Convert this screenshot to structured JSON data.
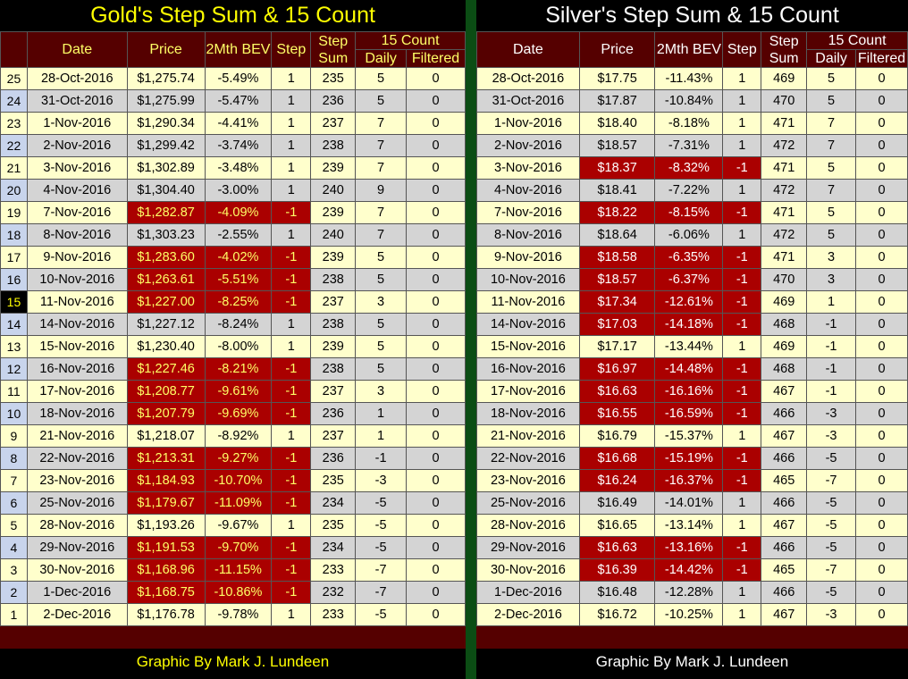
{
  "gold": {
    "title": "Gold's Step Sum & 15 Count",
    "headers": {
      "date": "Date",
      "price": "Price",
      "bev": "2Mth BEV",
      "step": "Step",
      "stepsum": "Step Sum",
      "count15": "15 Count",
      "daily": "Daily",
      "filtered": "Filtered"
    },
    "rows": [
      {
        "rank": "25",
        "date": "28-Oct-2016",
        "price": "$1,275.74",
        "bev": "-5.49%",
        "step": "1",
        "stepsum": "235",
        "daily": "5",
        "filtered": "0",
        "red": false
      },
      {
        "rank": "24",
        "date": "31-Oct-2016",
        "price": "$1,275.99",
        "bev": "-5.47%",
        "step": "1",
        "stepsum": "236",
        "daily": "5",
        "filtered": "0",
        "red": false
      },
      {
        "rank": "23",
        "date": "1-Nov-2016",
        "price": "$1,290.34",
        "bev": "-4.41%",
        "step": "1",
        "stepsum": "237",
        "daily": "7",
        "filtered": "0",
        "red": false
      },
      {
        "rank": "22",
        "date": "2-Nov-2016",
        "price": "$1,299.42",
        "bev": "-3.74%",
        "step": "1",
        "stepsum": "238",
        "daily": "7",
        "filtered": "0",
        "red": false
      },
      {
        "rank": "21",
        "date": "3-Nov-2016",
        "price": "$1,302.89",
        "bev": "-3.48%",
        "step": "1",
        "stepsum": "239",
        "daily": "7",
        "filtered": "0",
        "red": false
      },
      {
        "rank": "20",
        "date": "4-Nov-2016",
        "price": "$1,304.40",
        "bev": "-3.00%",
        "step": "1",
        "stepsum": "240",
        "daily": "9",
        "filtered": "0",
        "red": false
      },
      {
        "rank": "19",
        "date": "7-Nov-2016",
        "price": "$1,282.87",
        "bev": "-4.09%",
        "step": "-1",
        "stepsum": "239",
        "daily": "7",
        "filtered": "0",
        "red": true
      },
      {
        "rank": "18",
        "date": "8-Nov-2016",
        "price": "$1,303.23",
        "bev": "-2.55%",
        "step": "1",
        "stepsum": "240",
        "daily": "7",
        "filtered": "0",
        "red": false
      },
      {
        "rank": "17",
        "date": "9-Nov-2016",
        "price": "$1,283.60",
        "bev": "-4.02%",
        "step": "-1",
        "stepsum": "239",
        "daily": "5",
        "filtered": "0",
        "red": true
      },
      {
        "rank": "16",
        "date": "10-Nov-2016",
        "price": "$1,263.61",
        "bev": "-5.51%",
        "step": "-1",
        "stepsum": "238",
        "daily": "5",
        "filtered": "0",
        "red": true
      },
      {
        "rank": "15",
        "date": "11-Nov-2016",
        "price": "$1,227.00",
        "bev": "-8.25%",
        "step": "-1",
        "stepsum": "237",
        "daily": "3",
        "filtered": "0",
        "red": true,
        "hl": true
      },
      {
        "rank": "14",
        "date": "14-Nov-2016",
        "price": "$1,227.12",
        "bev": "-8.24%",
        "step": "1",
        "stepsum": "238",
        "daily": "5",
        "filtered": "0",
        "red": false
      },
      {
        "rank": "13",
        "date": "15-Nov-2016",
        "price": "$1,230.40",
        "bev": "-8.00%",
        "step": "1",
        "stepsum": "239",
        "daily": "5",
        "filtered": "0",
        "red": false
      },
      {
        "rank": "12",
        "date": "16-Nov-2016",
        "price": "$1,227.46",
        "bev": "-8.21%",
        "step": "-1",
        "stepsum": "238",
        "daily": "5",
        "filtered": "0",
        "red": true
      },
      {
        "rank": "11",
        "date": "17-Nov-2016",
        "price": "$1,208.77",
        "bev": "-9.61%",
        "step": "-1",
        "stepsum": "237",
        "daily": "3",
        "filtered": "0",
        "red": true
      },
      {
        "rank": "10",
        "date": "18-Nov-2016",
        "price": "$1,207.79",
        "bev": "-9.69%",
        "step": "-1",
        "stepsum": "236",
        "daily": "1",
        "filtered": "0",
        "red": true
      },
      {
        "rank": "9",
        "date": "21-Nov-2016",
        "price": "$1,218.07",
        "bev": "-8.92%",
        "step": "1",
        "stepsum": "237",
        "daily": "1",
        "filtered": "0",
        "red": false
      },
      {
        "rank": "8",
        "date": "22-Nov-2016",
        "price": "$1,213.31",
        "bev": "-9.27%",
        "step": "-1",
        "stepsum": "236",
        "daily": "-1",
        "filtered": "0",
        "red": true
      },
      {
        "rank": "7",
        "date": "23-Nov-2016",
        "price": "$1,184.93",
        "bev": "-10.70%",
        "step": "-1",
        "stepsum": "235",
        "daily": "-3",
        "filtered": "0",
        "red": true
      },
      {
        "rank": "6",
        "date": "25-Nov-2016",
        "price": "$1,179.67",
        "bev": "-11.09%",
        "step": "-1",
        "stepsum": "234",
        "daily": "-5",
        "filtered": "0",
        "red": true
      },
      {
        "rank": "5",
        "date": "28-Nov-2016",
        "price": "$1,193.26",
        "bev": "-9.67%",
        "step": "1",
        "stepsum": "235",
        "daily": "-5",
        "filtered": "0",
        "red": false
      },
      {
        "rank": "4",
        "date": "29-Nov-2016",
        "price": "$1,191.53",
        "bev": "-9.70%",
        "step": "-1",
        "stepsum": "234",
        "daily": "-5",
        "filtered": "0",
        "red": true
      },
      {
        "rank": "3",
        "date": "30-Nov-2016",
        "price": "$1,168.96",
        "bev": "-11.15%",
        "step": "-1",
        "stepsum": "233",
        "daily": "-7",
        "filtered": "0",
        "red": true
      },
      {
        "rank": "2",
        "date": "1-Dec-2016",
        "price": "$1,168.75",
        "bev": "-10.86%",
        "step": "-1",
        "stepsum": "232",
        "daily": "-7",
        "filtered": "0",
        "red": true
      },
      {
        "rank": "1",
        "date": "2-Dec-2016",
        "price": "$1,176.78",
        "bev": "-9.78%",
        "step": "1",
        "stepsum": "233",
        "daily": "-5",
        "filtered": "0",
        "red": false
      }
    ],
    "credit": "Graphic By Mark J. Lundeen"
  },
  "silver": {
    "title": "Silver's Step Sum & 15 Count",
    "headers": {
      "date": "Date",
      "price": "Price",
      "bev": "2Mth BEV",
      "step": "Step",
      "stepsum": "Step Sum",
      "count15": "15 Count",
      "daily": "Daily",
      "filtered": "Filtered"
    },
    "rows": [
      {
        "date": "28-Oct-2016",
        "price": "$17.75",
        "bev": "-11.43%",
        "step": "1",
        "stepsum": "469",
        "daily": "5",
        "filtered": "0",
        "red": false
      },
      {
        "date": "31-Oct-2016",
        "price": "$17.87",
        "bev": "-10.84%",
        "step": "1",
        "stepsum": "470",
        "daily": "5",
        "filtered": "0",
        "red": false
      },
      {
        "date": "1-Nov-2016",
        "price": "$18.40",
        "bev": "-8.18%",
        "step": "1",
        "stepsum": "471",
        "daily": "7",
        "filtered": "0",
        "red": false
      },
      {
        "date": "2-Nov-2016",
        "price": "$18.57",
        "bev": "-7.31%",
        "step": "1",
        "stepsum": "472",
        "daily": "7",
        "filtered": "0",
        "red": false
      },
      {
        "date": "3-Nov-2016",
        "price": "$18.37",
        "bev": "-8.32%",
        "step": "-1",
        "stepsum": "471",
        "daily": "5",
        "filtered": "0",
        "red": true
      },
      {
        "date": "4-Nov-2016",
        "price": "$18.41",
        "bev": "-7.22%",
        "step": "1",
        "stepsum": "472",
        "daily": "7",
        "filtered": "0",
        "red": false
      },
      {
        "date": "7-Nov-2016",
        "price": "$18.22",
        "bev": "-8.15%",
        "step": "-1",
        "stepsum": "471",
        "daily": "5",
        "filtered": "0",
        "red": true
      },
      {
        "date": "8-Nov-2016",
        "price": "$18.64",
        "bev": "-6.06%",
        "step": "1",
        "stepsum": "472",
        "daily": "5",
        "filtered": "0",
        "red": false
      },
      {
        "date": "9-Nov-2016",
        "price": "$18.58",
        "bev": "-6.35%",
        "step": "-1",
        "stepsum": "471",
        "daily": "3",
        "filtered": "0",
        "red": true
      },
      {
        "date": "10-Nov-2016",
        "price": "$18.57",
        "bev": "-6.37%",
        "step": "-1",
        "stepsum": "470",
        "daily": "3",
        "filtered": "0",
        "red": true
      },
      {
        "date": "11-Nov-2016",
        "price": "$17.34",
        "bev": "-12.61%",
        "step": "-1",
        "stepsum": "469",
        "daily": "1",
        "filtered": "0",
        "red": true
      },
      {
        "date": "14-Nov-2016",
        "price": "$17.03",
        "bev": "-14.18%",
        "step": "-1",
        "stepsum": "468",
        "daily": "-1",
        "filtered": "0",
        "red": true
      },
      {
        "date": "15-Nov-2016",
        "price": "$17.17",
        "bev": "-13.44%",
        "step": "1",
        "stepsum": "469",
        "daily": "-1",
        "filtered": "0",
        "red": false
      },
      {
        "date": "16-Nov-2016",
        "price": "$16.97",
        "bev": "-14.48%",
        "step": "-1",
        "stepsum": "468",
        "daily": "-1",
        "filtered": "0",
        "red": true
      },
      {
        "date": "17-Nov-2016",
        "price": "$16.63",
        "bev": "-16.16%",
        "step": "-1",
        "stepsum": "467",
        "daily": "-1",
        "filtered": "0",
        "red": true
      },
      {
        "date": "18-Nov-2016",
        "price": "$16.55",
        "bev": "-16.59%",
        "step": "-1",
        "stepsum": "466",
        "daily": "-3",
        "filtered": "0",
        "red": true
      },
      {
        "date": "21-Nov-2016",
        "price": "$16.79",
        "bev": "-15.37%",
        "step": "1",
        "stepsum": "467",
        "daily": "-3",
        "filtered": "0",
        "red": false
      },
      {
        "date": "22-Nov-2016",
        "price": "$16.68",
        "bev": "-15.19%",
        "step": "-1",
        "stepsum": "466",
        "daily": "-5",
        "filtered": "0",
        "red": true
      },
      {
        "date": "23-Nov-2016",
        "price": "$16.24",
        "bev": "-16.37%",
        "step": "-1",
        "stepsum": "465",
        "daily": "-7",
        "filtered": "0",
        "red": true
      },
      {
        "date": "25-Nov-2016",
        "price": "$16.49",
        "bev": "-14.01%",
        "step": "1",
        "stepsum": "466",
        "daily": "-5",
        "filtered": "0",
        "red": false
      },
      {
        "date": "28-Nov-2016",
        "price": "$16.65",
        "bev": "-13.14%",
        "step": "1",
        "stepsum": "467",
        "daily": "-5",
        "filtered": "0",
        "red": false
      },
      {
        "date": "29-Nov-2016",
        "price": "$16.63",
        "bev": "-13.16%",
        "step": "-1",
        "stepsum": "466",
        "daily": "-5",
        "filtered": "0",
        "red": true
      },
      {
        "date": "30-Nov-2016",
        "price": "$16.39",
        "bev": "-14.42%",
        "step": "-1",
        "stepsum": "465",
        "daily": "-7",
        "filtered": "0",
        "red": true
      },
      {
        "date": "1-Dec-2016",
        "price": "$16.48",
        "bev": "-12.28%",
        "step": "1",
        "stepsum": "466",
        "daily": "-5",
        "filtered": "0",
        "red": false
      },
      {
        "date": "2-Dec-2016",
        "price": "$16.72",
        "bev": "-10.25%",
        "step": "1",
        "stepsum": "467",
        "daily": "-3",
        "filtered": "0",
        "red": false
      }
    ],
    "credit": "Graphic By Mark J. Lundeen"
  }
}
